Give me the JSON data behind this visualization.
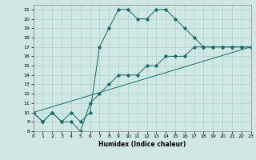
{
  "xlabel": "Humidex (Indice chaleur)",
  "ylabel": "",
  "bg_color": "#cfe8e4",
  "line_color": "#1a6b6b",
  "grid_color": "#b0d0cc",
  "line1_x": [
    0,
    1,
    2,
    3,
    4,
    5,
    6,
    7,
    8,
    9,
    10,
    11,
    12,
    13,
    14,
    15,
    16,
    17,
    18,
    19,
    20,
    21,
    22,
    23
  ],
  "line1_y": [
    10,
    9,
    10,
    9,
    10,
    9,
    10,
    17,
    19,
    21,
    21,
    20,
    20,
    21,
    21,
    20,
    19,
    18,
    17,
    17,
    17,
    17,
    17,
    17
  ],
  "line2_x": [
    0,
    1,
    2,
    3,
    4,
    5,
    6,
    7,
    8,
    9,
    10,
    11,
    12,
    13,
    14,
    15,
    16,
    17,
    18,
    19,
    20,
    21,
    22,
    23
  ],
  "line2_y": [
    10,
    9,
    10,
    9,
    9,
    8,
    11,
    12,
    13,
    14,
    14,
    14,
    15,
    15,
    16,
    16,
    16,
    17,
    17,
    17,
    17,
    17,
    17,
    17
  ],
  "line3_x": [
    0,
    23
  ],
  "line3_y": [
    10,
    17
  ],
  "xlim": [
    0,
    23
  ],
  "ylim": [
    8,
    21.5
  ],
  "xticks": [
    0,
    1,
    2,
    3,
    4,
    5,
    6,
    7,
    8,
    9,
    10,
    11,
    12,
    13,
    14,
    15,
    16,
    17,
    18,
    19,
    20,
    21,
    22,
    23
  ],
  "yticks": [
    8,
    9,
    10,
    11,
    12,
    13,
    14,
    15,
    16,
    17,
    18,
    19,
    20,
    21
  ]
}
